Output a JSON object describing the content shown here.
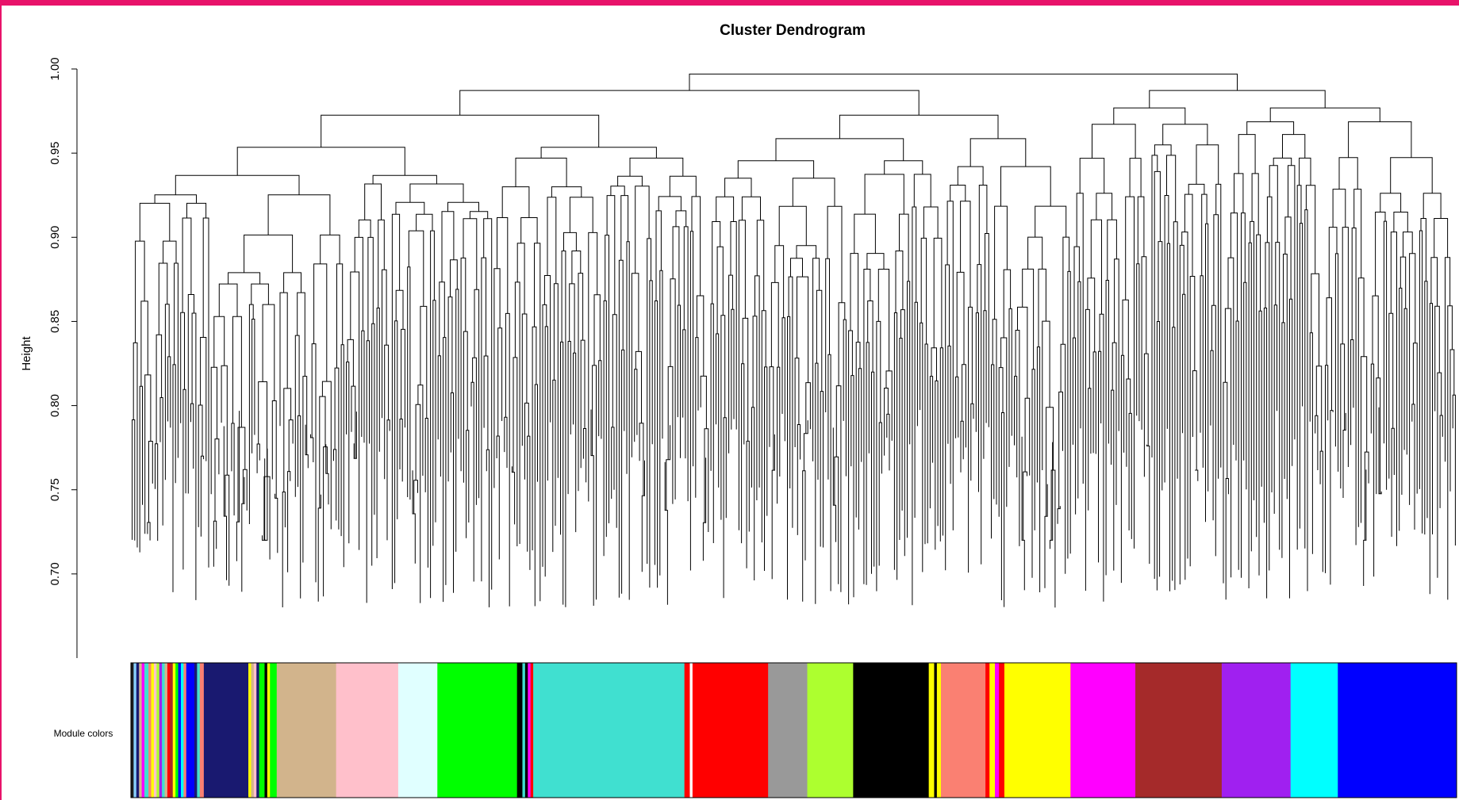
{
  "colors": {
    "frame": "#e8136a",
    "line": "#000000",
    "background": "#ffffff"
  },
  "chart_data": {
    "type": "dendrogram",
    "title": "Cluster Dendrogram",
    "ylabel": "Height",
    "xlabel": "",
    "ylim": [
      0.65,
      1.0
    ],
    "yticks": [
      0.7,
      0.75,
      0.8,
      0.85,
      0.9,
      0.95,
      1.0
    ],
    "yticklabels": [
      "0.70",
      "0.75",
      "0.80",
      "0.85",
      "0.90",
      "0.95",
      "1.00"
    ],
    "grid": false,
    "color_bar": {
      "label": "Module colors",
      "bands": [
        {
          "color": "#1a1a1a",
          "w": 0.002
        },
        {
          "color": "#87cefa",
          "w": 0.002
        },
        {
          "color": "#191970",
          "w": 0.002
        },
        {
          "color": "#d2b48c",
          "w": 0.002
        },
        {
          "color": "#ff00ff",
          "w": 0.002
        },
        {
          "color": "#40e0d0",
          "w": 0.003
        },
        {
          "color": "#fa8072",
          "w": 0.002
        },
        {
          "color": "#ffff00",
          "w": 0.002
        },
        {
          "color": "#ffc0cb",
          "w": 0.002
        },
        {
          "color": "#adff2f",
          "w": 0.002
        },
        {
          "color": "#a020f0",
          "w": 0.002
        },
        {
          "color": "#40e0d0",
          "w": 0.002
        },
        {
          "color": "#d2b48c",
          "w": 0.002
        },
        {
          "color": "#ff0000",
          "w": 0.002
        },
        {
          "color": "#a52a2a",
          "w": 0.002
        },
        {
          "color": "#ffff00",
          "w": 0.002
        },
        {
          "color": "#00ff00",
          "w": 0.002
        },
        {
          "color": "#0000ff",
          "w": 0.002
        },
        {
          "color": "#00ffff",
          "w": 0.002
        },
        {
          "color": "#fa8072",
          "w": 0.002
        },
        {
          "color": "#0000ff",
          "w": 0.006
        },
        {
          "color": "#191970",
          "w": 0.002
        },
        {
          "color": "#40e0d0",
          "w": 0.002
        },
        {
          "color": "#fa8072",
          "w": 0.003
        },
        {
          "color": "#191970",
          "w": 0.033
        },
        {
          "color": "#ffff00",
          "w": 0.002
        },
        {
          "color": "#d2b48c",
          "w": 0.002
        },
        {
          "color": "#ffc0cb",
          "w": 0.002
        },
        {
          "color": "#191970",
          "w": 0.002
        },
        {
          "color": "#00ff00",
          "w": 0.004
        },
        {
          "color": "#000000",
          "w": 0.002
        },
        {
          "color": "#ffff00",
          "w": 0.002
        },
        {
          "color": "#00ff00",
          "w": 0.005
        },
        {
          "color": "#d2b48c",
          "w": 0.044
        },
        {
          "color": "#ffc0cb",
          "w": 0.046
        },
        {
          "color": "#e0ffff",
          "w": 0.029
        },
        {
          "color": "#00ff00",
          "w": 0.059
        },
        {
          "color": "#000000",
          "w": 0.004
        },
        {
          "color": "#40e0d0",
          "w": 0.002
        },
        {
          "color": "#000000",
          "w": 0.002
        },
        {
          "color": "#ff00ff",
          "w": 0.002
        },
        {
          "color": "#ff0000",
          "w": 0.002
        },
        {
          "color": "#40e0d0",
          "w": 0.112
        },
        {
          "color": "#ff0000",
          "w": 0.004
        },
        {
          "color": "#ffffff",
          "w": 0.002
        },
        {
          "color": "#ff0000",
          "w": 0.056
        },
        {
          "color": "#999999",
          "w": 0.029
        },
        {
          "color": "#adff2f",
          "w": 0.034
        },
        {
          "color": "#000000",
          "w": 0.056
        },
        {
          "color": "#ffff00",
          "w": 0.004
        },
        {
          "color": "#000000",
          "w": 0.002
        },
        {
          "color": "#ffff00",
          "w": 0.003
        },
        {
          "color": "#fa8072",
          "w": 0.033
        },
        {
          "color": "#ff0000",
          "w": 0.003
        },
        {
          "color": "#ffff00",
          "w": 0.004
        },
        {
          "color": "#ff00ff",
          "w": 0.003
        },
        {
          "color": "#ff0000",
          "w": 0.004
        },
        {
          "color": "#ffff00",
          "w": 0.049
        },
        {
          "color": "#ff00ff",
          "w": 0.048
        },
        {
          "color": "#a52a2a",
          "w": 0.064
        },
        {
          "color": "#a020f0",
          "w": 0.051
        },
        {
          "color": "#00ffff",
          "w": 0.035
        },
        {
          "color": "#0000ff",
          "w": 0.088
        }
      ]
    }
  }
}
